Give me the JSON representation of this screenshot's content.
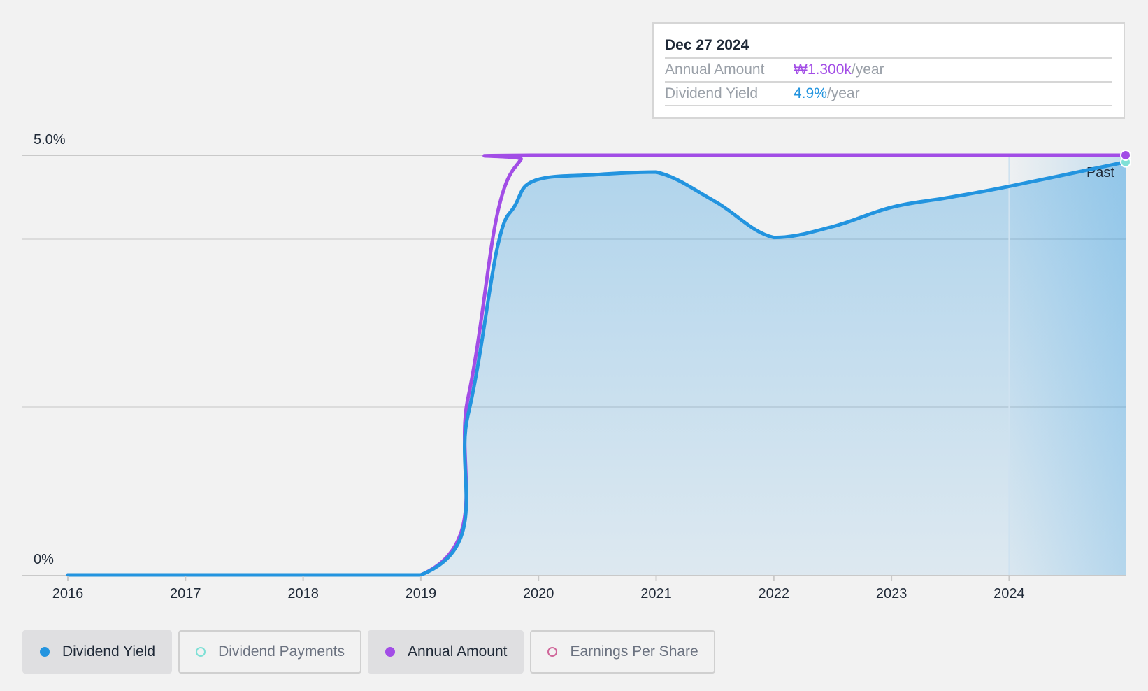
{
  "tooltip": {
    "date": "Dec 27 2024",
    "rows": [
      {
        "label": "Annual Amount",
        "value": "₩1.300k",
        "unit": "/year",
        "color": "#a24de6"
      },
      {
        "label": "Dividend Yield",
        "value": "4.9%",
        "unit": "/year",
        "color": "#2394df"
      }
    ]
  },
  "legend": [
    {
      "label": "Dividend Yield",
      "active": true,
      "color": "#2394df",
      "filled": true
    },
    {
      "label": "Dividend Payments",
      "active": false,
      "color": "#7fe0d6",
      "filled": false
    },
    {
      "label": "Annual Amount",
      "active": true,
      "color": "#a24de6",
      "filled": true
    },
    {
      "label": "Earnings Per Share",
      "active": false,
      "color": "#d0679a",
      "filled": false
    }
  ],
  "chart_data": {
    "type": "area",
    "x_tick_labels": [
      "2016",
      "2017",
      "2018",
      "2019",
      "2020",
      "2021",
      "2022",
      "2023",
      "2024"
    ],
    "y_tick_labels": [
      "0%",
      "5.0%"
    ],
    "ylim": [
      0,
      5.0
    ],
    "xlim": [
      2015.6,
      2024.99
    ],
    "grid": true,
    "past_label": "Past",
    "past_region_start": 2024.0,
    "series": [
      {
        "name": "Dividend Yield",
        "color": "#2394df",
        "points": [
          [
            2016.0,
            0
          ],
          [
            2019.0,
            0
          ],
          [
            2019.4,
            1.9
          ],
          [
            2019.65,
            3.9
          ],
          [
            2019.8,
            4.4
          ],
          [
            2019.97,
            4.7
          ],
          [
            2020.5,
            4.77
          ],
          [
            2021.0,
            4.8
          ],
          [
            2021.5,
            4.45
          ],
          [
            2022.0,
            4.02
          ],
          [
            2022.5,
            4.15
          ],
          [
            2023.0,
            4.38
          ],
          [
            2023.5,
            4.5
          ],
          [
            2024.0,
            4.63
          ],
          [
            2024.99,
            4.92
          ]
        ]
      },
      {
        "name": "Annual Amount",
        "color": "#a24de6",
        "points": [
          [
            2016.0,
            0
          ],
          [
            2019.0,
            0
          ],
          [
            2019.4,
            2.1
          ],
          [
            2019.65,
            4.3
          ],
          [
            2019.85,
            4.95
          ],
          [
            2019.97,
            5.0
          ],
          [
            2024.99,
            5.0
          ]
        ]
      }
    ]
  }
}
